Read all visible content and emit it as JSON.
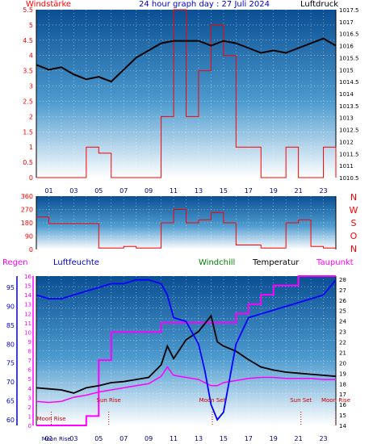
{
  "chart_data": [
    {
      "type": "line",
      "title": "24 hour graph day : 27 Juli 2024",
      "left_label": "Windstärke",
      "right_label": "Luftdruck",
      "left_ticks": [
        "0",
        "0.5",
        "1",
        "1.5",
        "2",
        "2.5",
        "3",
        "3.5",
        "4",
        "4.5",
        "5",
        "5.5"
      ],
      "right_ticks": [
        "1010.5",
        "1011",
        "1011.5",
        "1012",
        "1012.5",
        "1013",
        "1013.5",
        "1014",
        "1014.5",
        "1015",
        "1015.5",
        "1016",
        "1016.5",
        "1017",
        "1017.5"
      ],
      "x_ticks": [
        "01",
        "03",
        "05",
        "07",
        "09",
        "11",
        "13",
        "15",
        "17",
        "19",
        "21",
        "23"
      ],
      "left_range": [
        0,
        5.5
      ],
      "right_range": [
        1010.5,
        1017.5
      ],
      "series": [
        {
          "name": "Luftdruck",
          "color": "#000000",
          "axis": "right",
          "x": [
            0,
            1,
            2,
            3,
            4,
            5,
            6,
            7,
            8,
            9,
            10,
            11,
            12,
            13,
            14,
            15,
            16,
            17,
            18,
            19,
            20,
            21,
            22,
            23,
            24
          ],
          "values": [
            1015.2,
            1015.0,
            1015.1,
            1014.8,
            1014.6,
            1014.7,
            1014.5,
            1015.0,
            1015.5,
            1015.8,
            1016.1,
            1016.2,
            1016.2,
            1016.2,
            1016.0,
            1016.2,
            1016.1,
            1015.9,
            1015.7,
            1015.8,
            1015.7,
            1015.9,
            1016.1,
            1016.3,
            1016.0
          ]
        },
        {
          "name": "Windstärke",
          "color": "#ff0000",
          "axis": "left",
          "x": [
            0,
            2,
            4,
            5,
            6,
            7,
            8,
            9,
            10,
            11,
            12,
            13,
            14,
            15,
            16,
            17,
            18,
            19,
            20,
            21,
            22,
            23,
            24
          ],
          "values": [
            0,
            0,
            1,
            0.8,
            0,
            0,
            0,
            0,
            2,
            5.5,
            2,
            3.5,
            5,
            4,
            1,
            1,
            0,
            0,
            1,
            0,
            0,
            1,
            0
          ]
        }
      ]
    },
    {
      "type": "line",
      "y_ticks": [
        "0",
        "90",
        "180",
        "270",
        "360"
      ],
      "right_labels": [
        "N",
        "W",
        "S",
        "O",
        "N"
      ],
      "y_range": [
        0,
        360
      ],
      "series": [
        {
          "name": "Windrichtung",
          "color": "#ff0000",
          "x": [
            0,
            1,
            4,
            5,
            6,
            7,
            8,
            9,
            10,
            11,
            12,
            13,
            14,
            15,
            16,
            17,
            18,
            19,
            20,
            21,
            22,
            23,
            24
          ],
          "values": [
            220,
            175,
            175,
            10,
            10,
            20,
            10,
            10,
            180,
            270,
            180,
            200,
            250,
            180,
            30,
            30,
            10,
            10,
            180,
            200,
            20,
            10,
            10
          ]
        }
      ]
    },
    {
      "type": "line",
      "legend": [
        "Regen",
        "Luftfeuchte",
        "Windchill",
        "Temperatur",
        "Taupunkt"
      ],
      "rain_ticks": [
        "0",
        "1",
        "2",
        "3",
        "4",
        "5",
        "6",
        "7",
        "8",
        "9",
        "10",
        "11",
        "12",
        "13",
        "14",
        "15",
        "16"
      ],
      "humidity_ticks": [
        "60",
        "65",
        "70",
        "75",
        "80",
        "85",
        "90",
        "95"
      ],
      "temp_ticks": [
        "14",
        "15",
        "16",
        "17",
        "18",
        "19",
        "20",
        "21",
        "22",
        "23",
        "24",
        "25",
        "26",
        "27",
        "28"
      ],
      "x_ticks": [
        "01",
        "03",
        "05",
        "07",
        "09",
        "11",
        "13",
        "15",
        "17",
        "19",
        "21",
        "23"
      ],
      "humidity_range": [
        58.5,
        98
      ],
      "temp_range": [
        14,
        28.3
      ],
      "rain_range": [
        0,
        16
      ],
      "series": [
        {
          "name": "Luftfeuchte",
          "color": "#0000ff",
          "axis": "humidity",
          "x": [
            0,
            1,
            2,
            3,
            4,
            5,
            6,
            7,
            8,
            9,
            10,
            10.5,
            11,
            12,
            13,
            13.5,
            14,
            14.5,
            15,
            16,
            17,
            18,
            19,
            20,
            21,
            22,
            23,
            24
          ],
          "values": [
            93,
            92,
            92,
            93,
            94,
            95,
            96,
            96,
            97,
            97,
            96,
            93,
            87,
            86,
            80,
            73,
            64,
            60,
            62,
            80,
            87,
            88,
            89,
            90,
            91,
            92,
            93,
            97
          ]
        },
        {
          "name": "Temperatur",
          "color": "#000000",
          "axis": "temp",
          "x": [
            0,
            1,
            2,
            3,
            4,
            5,
            6,
            7,
            8,
            9,
            10,
            10.5,
            11,
            12,
            13,
            14,
            14.5,
            15,
            16,
            17,
            18,
            19,
            20,
            21,
            22,
            23,
            24
          ],
          "values": [
            17.6,
            17.5,
            17.4,
            17.1,
            17.6,
            17.8,
            18.1,
            18.2,
            18.4,
            18.6,
            19.8,
            21.6,
            20.4,
            22.2,
            23.0,
            24.5,
            22.0,
            21.6,
            21.1,
            20.3,
            19.6,
            19.3,
            19.1,
            19.0,
            18.9,
            18.8,
            18.7
          ]
        },
        {
          "name": "Taupunkt",
          "color": "#ff00ff",
          "axis": "temp",
          "x": [
            0,
            1,
            2,
            3,
            4,
            5,
            6,
            7,
            8,
            9,
            10,
            10.5,
            11,
            12,
            13,
            14,
            14.5,
            15,
            16,
            17,
            18,
            19,
            20,
            21,
            22,
            23,
            24
          ],
          "values": [
            16.3,
            16.2,
            16.3,
            16.7,
            16.9,
            17.2,
            17.4,
            17.6,
            17.8,
            18.0,
            18.7,
            19.6,
            18.8,
            18.6,
            18.4,
            17.8,
            17.8,
            18.1,
            18.3,
            18.5,
            18.6,
            18.6,
            18.5,
            18.5,
            18.5,
            18.4,
            18.4
          ]
        },
        {
          "name": "Regen",
          "color": "#ff00ff",
          "axis": "rain",
          "x": [
            0,
            3,
            4,
            5,
            6,
            7,
            8,
            9,
            10,
            13,
            14,
            15,
            16,
            17,
            18,
            19,
            20,
            21,
            22,
            23,
            24
          ],
          "values": [
            0,
            0,
            1,
            7,
            10,
            10,
            10,
            10,
            11,
            11,
            11,
            11,
            12,
            13,
            14,
            15,
            15,
            16,
            16,
            16,
            16
          ]
        }
      ],
      "annotations": [
        {
          "text": "Moon Rise",
          "x": 1.2
        },
        {
          "text": "Sun Rise",
          "x": 5.8
        },
        {
          "text": "Moon Set",
          "x": 14.1
        },
        {
          "text": "Sun Set",
          "x": 21.2
        },
        {
          "text": "Moon Rise",
          "x": 24.0
        }
      ],
      "bottom_labels": [
        "Moon Rise",
        "Sun Rise",
        "Moon Set",
        "Sun Set",
        "Moon Rise"
      ]
    }
  ]
}
